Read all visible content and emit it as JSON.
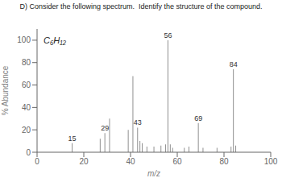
{
  "chart_data": {
    "type": "stem",
    "title": "D) Consider the following spectrum.  Identify the structure of the compound.",
    "annotations": [
      {
        "text": "C₆H₁₂"
      }
    ],
    "x_label": "m/z",
    "y_label": "% Abundance",
    "xlim": [
      0,
      100
    ],
    "ylim": [
      0,
      110
    ],
    "xticks": [
      0,
      20,
      40,
      60,
      80,
      100
    ],
    "yticks": [
      0,
      20,
      40,
      60,
      80,
      100
    ],
    "color": "#909090",
    "x": [
      15,
      27,
      29,
      31,
      39,
      41,
      43,
      44,
      45,
      47,
      50,
      53,
      55,
      56,
      57,
      58,
      63,
      65,
      69,
      71,
      77,
      83,
      84,
      85
    ],
    "values": [
      8,
      12,
      17,
      30,
      20,
      68,
      22,
      10,
      8,
      5,
      5,
      6,
      7,
      100,
      7,
      4,
      4,
      5,
      26,
      4,
      4,
      5,
      74,
      6
    ],
    "peak_labels": [
      "15",
      null,
      "29",
      null,
      null,
      null,
      "43",
      null,
      null,
      null,
      null,
      null,
      null,
      "56",
      null,
      null,
      null,
      null,
      "69",
      null,
      null,
      null,
      "84",
      null
    ]
  }
}
